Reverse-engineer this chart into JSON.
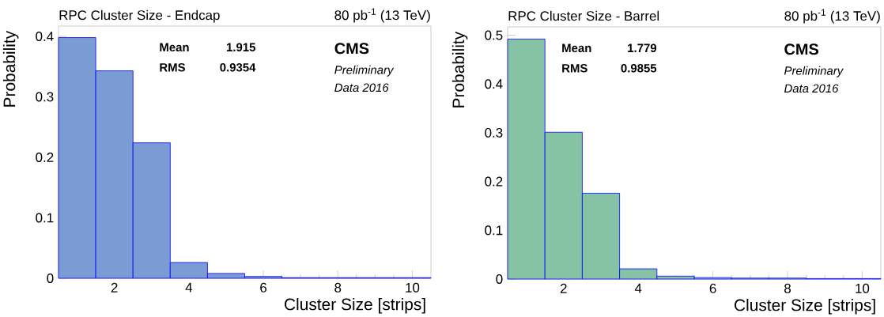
{
  "chart_data": [
    {
      "type": "histogram",
      "title": "RPC Cluster Size - Endcap",
      "subtitle": "80 pb$^{-1}$ (13 TeV)",
      "xlabel": "Cluster Size [strips]",
      "ylabel": "Probability",
      "bins": [
        0.5,
        1.5,
        2.5,
        3.5,
        4.5,
        5.5,
        6.5,
        7.5,
        8.5,
        9.5,
        10.5
      ],
      "values": [
        0.398,
        0.343,
        0.224,
        0.026,
        0.008,
        0.003,
        0.001,
        0.001,
        0.001,
        0.001
      ],
      "color": "#7b9bd4",
      "xlim": [
        0.5,
        10.5
      ],
      "ylim": [
        0,
        0.417
      ],
      "xticks": [
        2,
        4,
        6,
        8,
        10
      ],
      "yticks": [
        0,
        0.1,
        0.2,
        0.3,
        0.4
      ],
      "annotations": [
        "Mean",
        "1.915",
        "RMS",
        "0.9354",
        "CMS",
        "Preliminary",
        "Data 2016"
      ]
    },
    {
      "type": "histogram",
      "title": "RPC Cluster Size - Barrel",
      "subtitle": "80 pb$^{-1}$ (13 TeV)",
      "xlabel": "Cluster Size [strips]",
      "ylabel": "Probability",
      "bins": [
        0.5,
        1.5,
        2.5,
        3.5,
        4.5,
        5.5,
        6.5,
        7.5,
        8.5,
        9.5,
        10.5
      ],
      "values": [
        0.492,
        0.301,
        0.176,
        0.021,
        0.006,
        0.003,
        0.002,
        0.002,
        0.001,
        0.001
      ],
      "color": "#86c3a5",
      "xlim": [
        0.5,
        10.5
      ],
      "ylim": [
        0,
        0.517
      ],
      "xticks": [
        2,
        4,
        6,
        8,
        10
      ],
      "yticks": [
        0,
        0.1,
        0.2,
        0.3,
        0.4,
        0.5
      ],
      "annotations": [
        "Mean",
        "1.779",
        "RMS",
        "0.9855",
        "CMS",
        "Preliminary",
        "Data 2016"
      ]
    }
  ]
}
